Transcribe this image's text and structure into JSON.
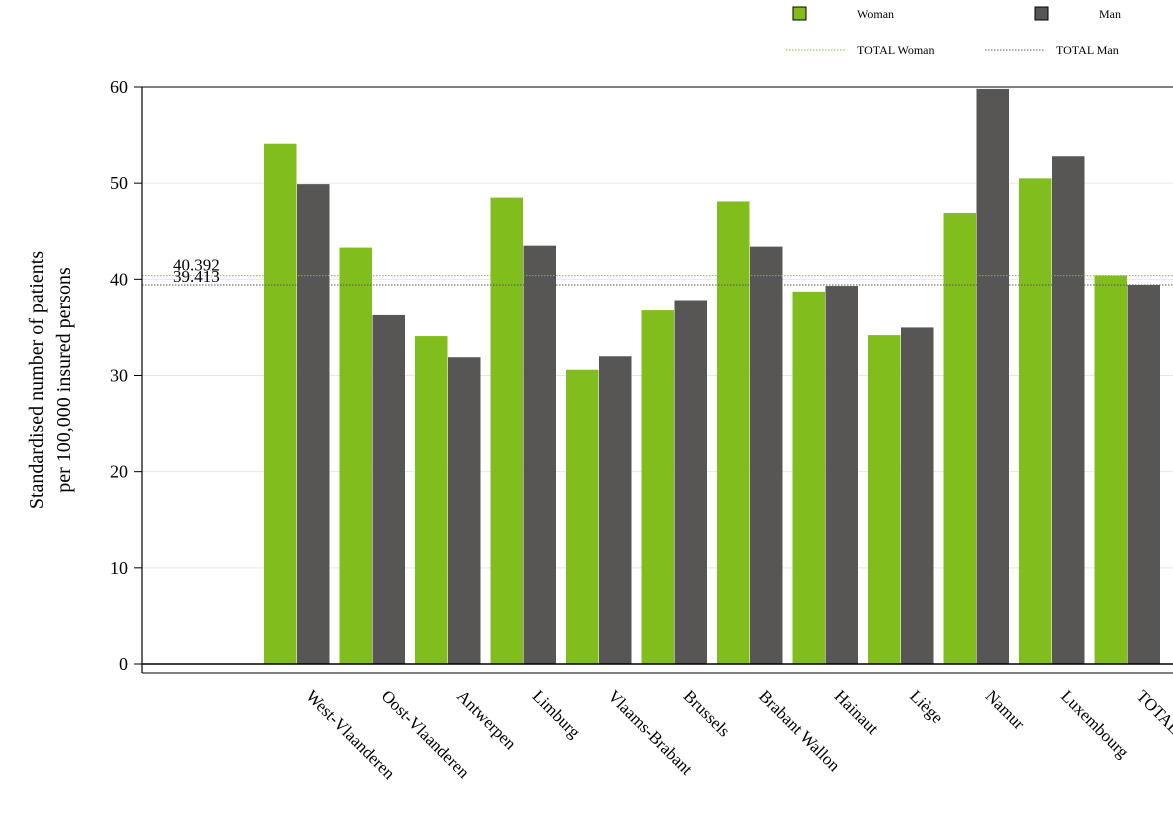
{
  "chart_data": {
    "type": "bar",
    "title": "",
    "xlabel": "",
    "ylabel_lines": [
      "Standardised number of patients",
      "per 100,000 insured persons"
    ],
    "ylim": [
      0,
      60
    ],
    "yticks": [
      0,
      10,
      20,
      30,
      40,
      50,
      60
    ],
    "grid": true,
    "legend_position": "top-right",
    "categories": [
      "West-Vlaanderen",
      "Oost-Vlaanderen",
      "Antwerpen",
      "Limburg",
      "Vlaams-Brabant",
      "Brussels",
      "Brabant Wallon",
      "Hainaut",
      "Liège",
      "Namur",
      "Luxembourg",
      "TOTAL"
    ],
    "series": [
      {
        "name": "Woman",
        "color": "#80bd1d",
        "values": [
          54.1,
          43.3,
          34.1,
          48.5,
          30.6,
          36.8,
          48.1,
          38.7,
          34.2,
          46.9,
          50.5,
          40.392
        ]
      },
      {
        "name": "Man",
        "color": "#575654",
        "values": [
          49.9,
          36.3,
          31.9,
          43.5,
          32.0,
          37.8,
          43.4,
          39.3,
          35.0,
          59.8,
          52.8,
          39.413
        ]
      }
    ],
    "reference_lines": [
      {
        "name": "TOTAL Woman",
        "value": 40.392,
        "label": "40.392",
        "color": "#80bd1d"
      },
      {
        "name": "TOTAL Man",
        "value": 39.413,
        "label": "39.413",
        "color": "#555555"
      }
    ]
  }
}
